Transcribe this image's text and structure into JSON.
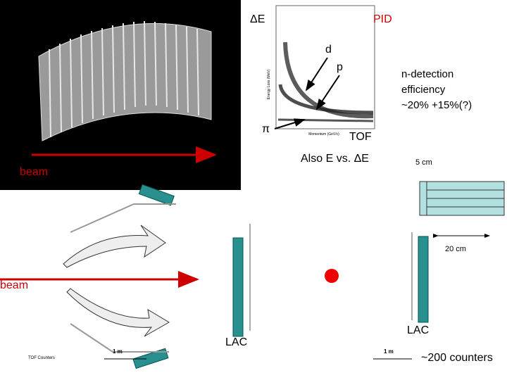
{
  "detector_view": {
    "beam_label": "beam"
  },
  "pid_plot": {
    "delta_e": "ΔE",
    "pid": "PID",
    "d": "d",
    "p": "p",
    "pi": "π",
    "tof": "TOF",
    "y_axis": "Energy Loss (MeV)",
    "x_axis": "Momentum (GeV/c)",
    "also": "Also   E vs. ΔE"
  },
  "efficiency": {
    "lines": [
      "n-detection",
      "efficiency",
      "~20% +15%(?)"
    ]
  },
  "scale": {
    "five_cm": "5 cm",
    "twenty_cm": "20 cm",
    "one_m_left": "1 m",
    "one_m_right": "1 m"
  },
  "layout": {
    "beam_label": "beam",
    "lac_left": "LAC",
    "lac_right": "LAC",
    "tof_counters": "TOF Counters",
    "counters": "~200 counters"
  }
}
